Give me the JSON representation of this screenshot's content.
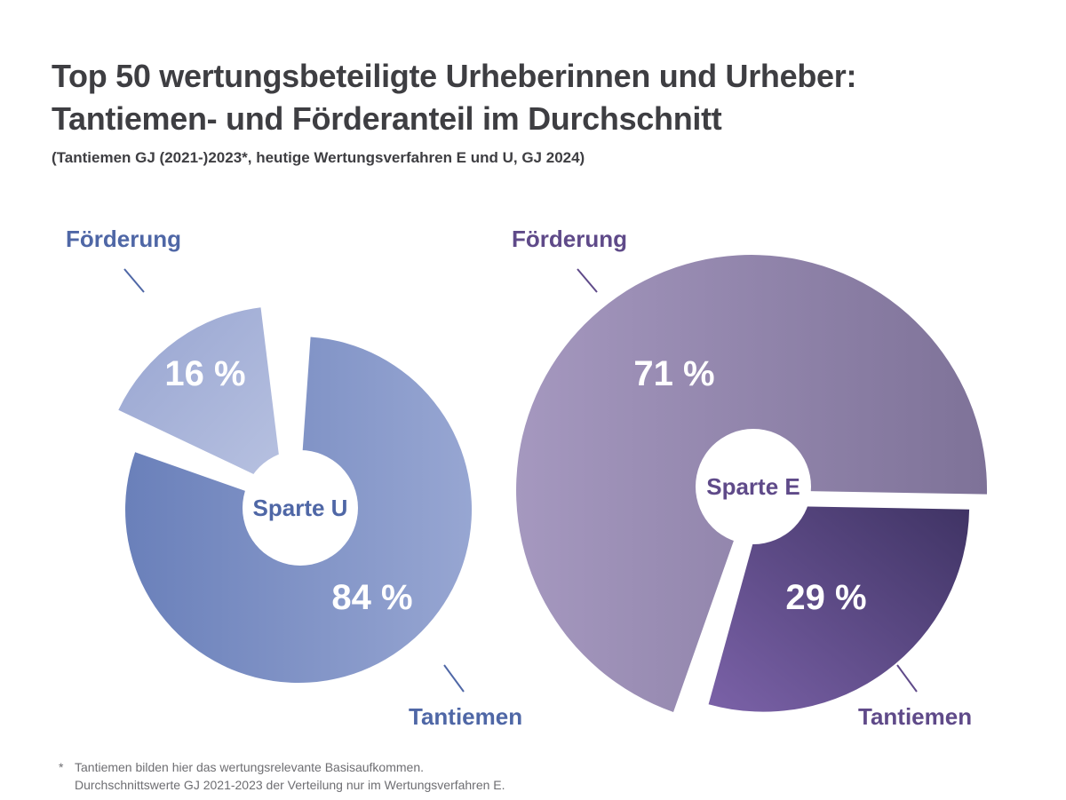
{
  "header": {
    "title_line1": "Top 50 wertungsbeteiligte Urheberinnen und Urheber:",
    "title_line2": "Tantiemen- und Förderanteil im Durchschnitt",
    "subtitle": "(Tantiemen GJ (2021-)2023*, heutige Wertungsverfahren E und U, GJ 2024)"
  },
  "chart_data": [
    {
      "type": "pie",
      "center_label": "Sparte U",
      "slices": [
        {
          "name": "Förderung",
          "value": 16,
          "value_label": "16 %",
          "color": "#a3afd6"
        },
        {
          "name": "Tantiemen",
          "value": 84,
          "value_label": "84 %",
          "color": "#7b8fc6"
        }
      ],
      "label_color": "#4f67a6"
    },
    {
      "type": "pie",
      "center_label": "Sparte E",
      "slices": [
        {
          "name": "Förderung",
          "value": 71,
          "value_label": "71 %",
          "color": "#988bb0"
        },
        {
          "name": "Tantiemen",
          "value": 29,
          "value_label": "29 %",
          "color": "#584480"
        }
      ],
      "label_color": "#5f4a89"
    }
  ],
  "footnote": {
    "marker": "*",
    "line1": "Tantiemen bilden hier das wertungsrelevante Basisaufkommen.",
    "line2": "Durchschnittswerte GJ 2021-2023 der Verteilung nur im Wertungsverfahren E."
  }
}
